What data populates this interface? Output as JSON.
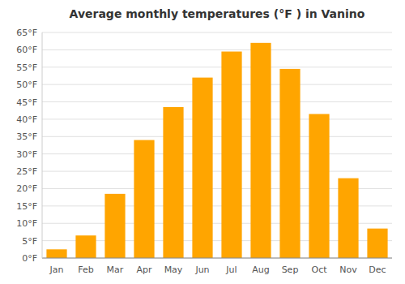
{
  "chart_data": {
    "type": "bar",
    "title": "Average monthly temperatures (°F ) in Vanino",
    "categories": [
      "Jan",
      "Feb",
      "Mar",
      "Apr",
      "May",
      "Jun",
      "Jul",
      "Aug",
      "Sep",
      "Oct",
      "Nov",
      "Dec"
    ],
    "values": [
      2.5,
      6.5,
      18.5,
      34.0,
      43.5,
      52.0,
      59.5,
      62.0,
      54.5,
      41.5,
      23.0,
      8.5
    ],
    "color": "#FFA500",
    "ylim": [
      0,
      65
    ],
    "yticks": [
      {
        "value": 0,
        "label": "0°F"
      },
      {
        "value": 5,
        "label": "5°F"
      },
      {
        "value": 10,
        "label": "10°F"
      },
      {
        "value": 15,
        "label": "15°F"
      },
      {
        "value": 20,
        "label": "20°F"
      },
      {
        "value": 25,
        "label": "25°F"
      },
      {
        "value": 30,
        "label": "30°F"
      },
      {
        "value": 35,
        "label": "35°F"
      },
      {
        "value": 40,
        "label": "40°F"
      },
      {
        "value": 45,
        "label": "45°F"
      },
      {
        "value": 50,
        "label": "50°F"
      },
      {
        "value": 55,
        "label": "55°F"
      },
      {
        "value": 60,
        "label": "60°F"
      },
      {
        "value": 65,
        "label": "65°F"
      }
    ],
    "grid": true
  }
}
